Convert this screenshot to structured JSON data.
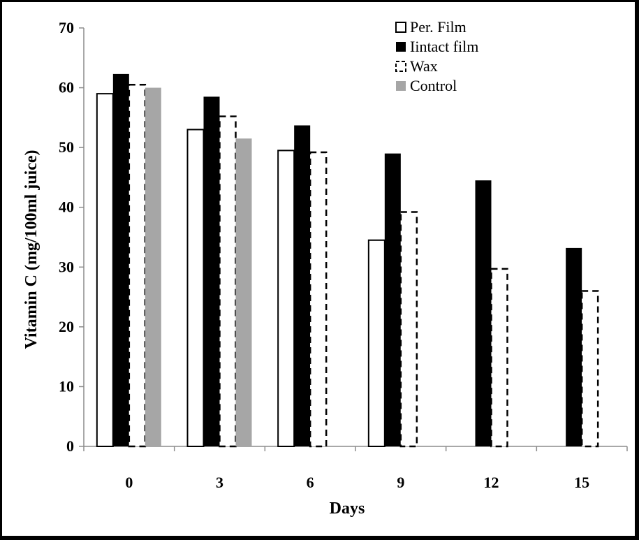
{
  "chart_data": {
    "type": "bar",
    "xlabel": "Days",
    "ylabel": "Vitamin C (mg/100ml juice)",
    "ylim": [
      0,
      70
    ],
    "yticks": [
      0,
      10,
      20,
      30,
      40,
      50,
      60,
      70
    ],
    "categories": [
      "0",
      "3",
      "6",
      "9",
      "12",
      "15"
    ],
    "series": [
      {
        "name": "Per. Film",
        "style": "open",
        "color": "#ffffff",
        "values": [
          59,
          53,
          49.5,
          34.5,
          null,
          null
        ]
      },
      {
        "name": "Iintact film",
        "style": "filled",
        "color": "#000000",
        "values": [
          62.3,
          58.5,
          53.7,
          49,
          44.5,
          33.2
        ]
      },
      {
        "name": "Wax",
        "style": "dashed",
        "color": "#ffffff",
        "values": [
          60.5,
          55.2,
          49.2,
          39.2,
          29.7,
          26
        ]
      },
      {
        "name": "Control",
        "style": "filled",
        "color": "#a6a6a6",
        "values": [
          60,
          51.5,
          null,
          null,
          null,
          null
        ]
      }
    ],
    "grid": false,
    "legend_position": "top-right"
  }
}
